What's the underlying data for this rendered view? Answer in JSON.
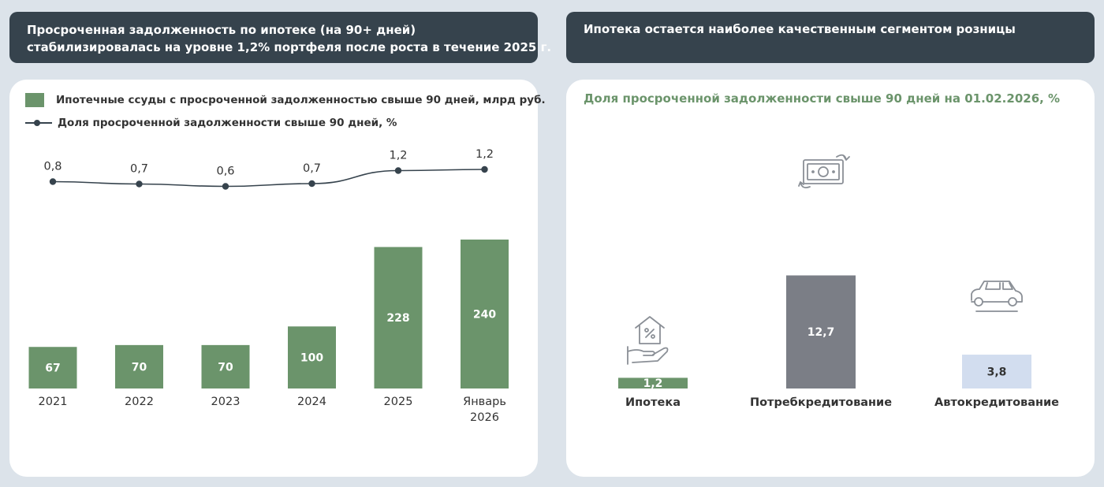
{
  "left_header": {
    "line1": "Просроченная задолженность по ипотеке (на 90+ дней)",
    "line2": "стабилизировалась на уровне 1,2% портфеля после роста в течение 2025 г."
  },
  "right_header": {
    "title": "Ипотека остается наиболее качественным сегментом розницы"
  },
  "colors": {
    "header_bg": "#36434d",
    "page_bg": "#dce3ea",
    "bar_green": "#6b946b",
    "bar_gray": "#7b7e86",
    "bar_light_blue": "#d2ddef",
    "accent_green_text": "#6b946b"
  },
  "chart_data": [
    {
      "type": "bar",
      "categories": [
        "2021",
        "2022",
        "2023",
        "2024",
        "2025",
        "Январь 2026"
      ],
      "series": [
        {
          "name": "Ипотечные ссуды с просроченной задолженностью свыше 90 дней, млрд руб.",
          "type": "bar",
          "values": [
            67,
            70,
            70,
            100,
            228,
            240
          ],
          "labels": [
            "67",
            "70",
            "70",
            "100",
            "228",
            "240"
          ]
        },
        {
          "name": "Доля просроченной задолженности свыше 90 дней, %",
          "type": "line",
          "values": [
            0.8,
            0.7,
            0.6,
            0.7,
            1.2,
            1.2
          ],
          "labels": [
            "0,8",
            "0,7",
            "0,6",
            "0,7",
            "1,2",
            "1,2"
          ]
        }
      ],
      "legend_position": "top-left",
      "grid": false
    },
    {
      "type": "bar",
      "title": "Доля просроченной задолженности свыше 90 дней на 01.02.2026, %",
      "categories": [
        "Ипотека",
        "Потребкредитование",
        "Автокредитование"
      ],
      "values": [
        1.2,
        12.7,
        3.8
      ],
      "labels": [
        "1,2",
        "12,7",
        "3,8"
      ],
      "icons": [
        "house-in-hand-icon",
        "money-exchange-icon",
        "car-icon"
      ],
      "grid": false
    }
  ]
}
